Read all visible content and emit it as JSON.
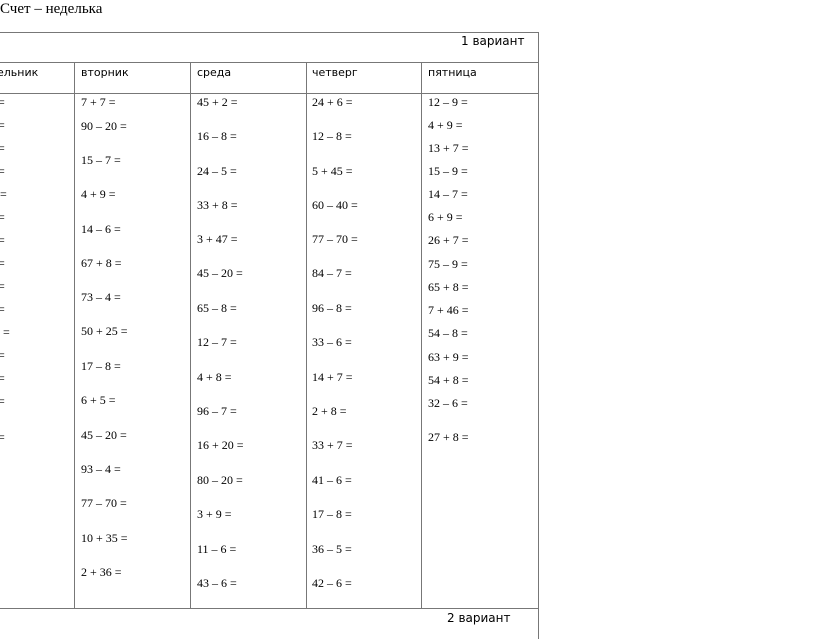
{
  "title": "Счет – неделька",
  "variant_1": "1 вариант",
  "variant_2": "2 вариант",
  "columns": [
    {
      "header": "ельник",
      "items": [
        "=",
        "=",
        "=",
        "=",
        ". =",
        "=",
        "=",
        "=",
        "=",
        "=",
        "0 =",
        "=",
        "=",
        "=",
        "="
      ]
    },
    {
      "header": "вторник",
      "items": [
        "7 + 7 =",
        "90 – 20 =",
        "15 – 7 =",
        "4 + 9 =",
        "14 – 6 =",
        "67 + 8 =",
        "73 – 4 =",
        "50 + 25 =",
        "17 – 8 =",
        "6 + 5 =",
        "45 – 20 =",
        "93 – 4 =",
        "77 – 70 =",
        "10 + 35 =",
        "2 + 36 ="
      ]
    },
    {
      "header": "среда",
      "items": [
        "45 + 2 =",
        "16 – 8 =",
        "24 – 5 =",
        "33 + 8 =",
        "3 + 47 =",
        "45 – 20 =",
        "65 – 8 =",
        "12 – 7 =",
        "4 + 8 =",
        "96 – 7 =",
        "16 + 20 =",
        "80 – 20 =",
        "3 + 9 =",
        "11 – 6 =",
        "43 – 6 ="
      ]
    },
    {
      "header": "четверг",
      "items": [
        "24 + 6 =",
        "12 – 8 =",
        "5 + 45 =",
        "60 – 40 =",
        "77 – 70 =",
        "84 – 7 =",
        "96 – 8 =",
        "33 – 6 =",
        "14 + 7 =",
        "2 + 8 =",
        "33 + 7 =",
        "41 – 6 =",
        "17 – 8 =",
        "36 – 5 =",
        "42 – 6 ="
      ]
    },
    {
      "header": "пятница",
      "items": [
        "12 – 9 =",
        "4 + 9 =",
        "13 + 7 =",
        "15 – 9 =",
        "14 – 7 =",
        "6 + 9 =",
        "26 + 7 =",
        "75 – 9 =",
        "65 + 8 =",
        "7 + 46 =",
        "54 – 8 =",
        "63 + 9 =",
        "54 + 8 =",
        "32 – 6 =",
        "27 + 8 ="
      ]
    }
  ]
}
